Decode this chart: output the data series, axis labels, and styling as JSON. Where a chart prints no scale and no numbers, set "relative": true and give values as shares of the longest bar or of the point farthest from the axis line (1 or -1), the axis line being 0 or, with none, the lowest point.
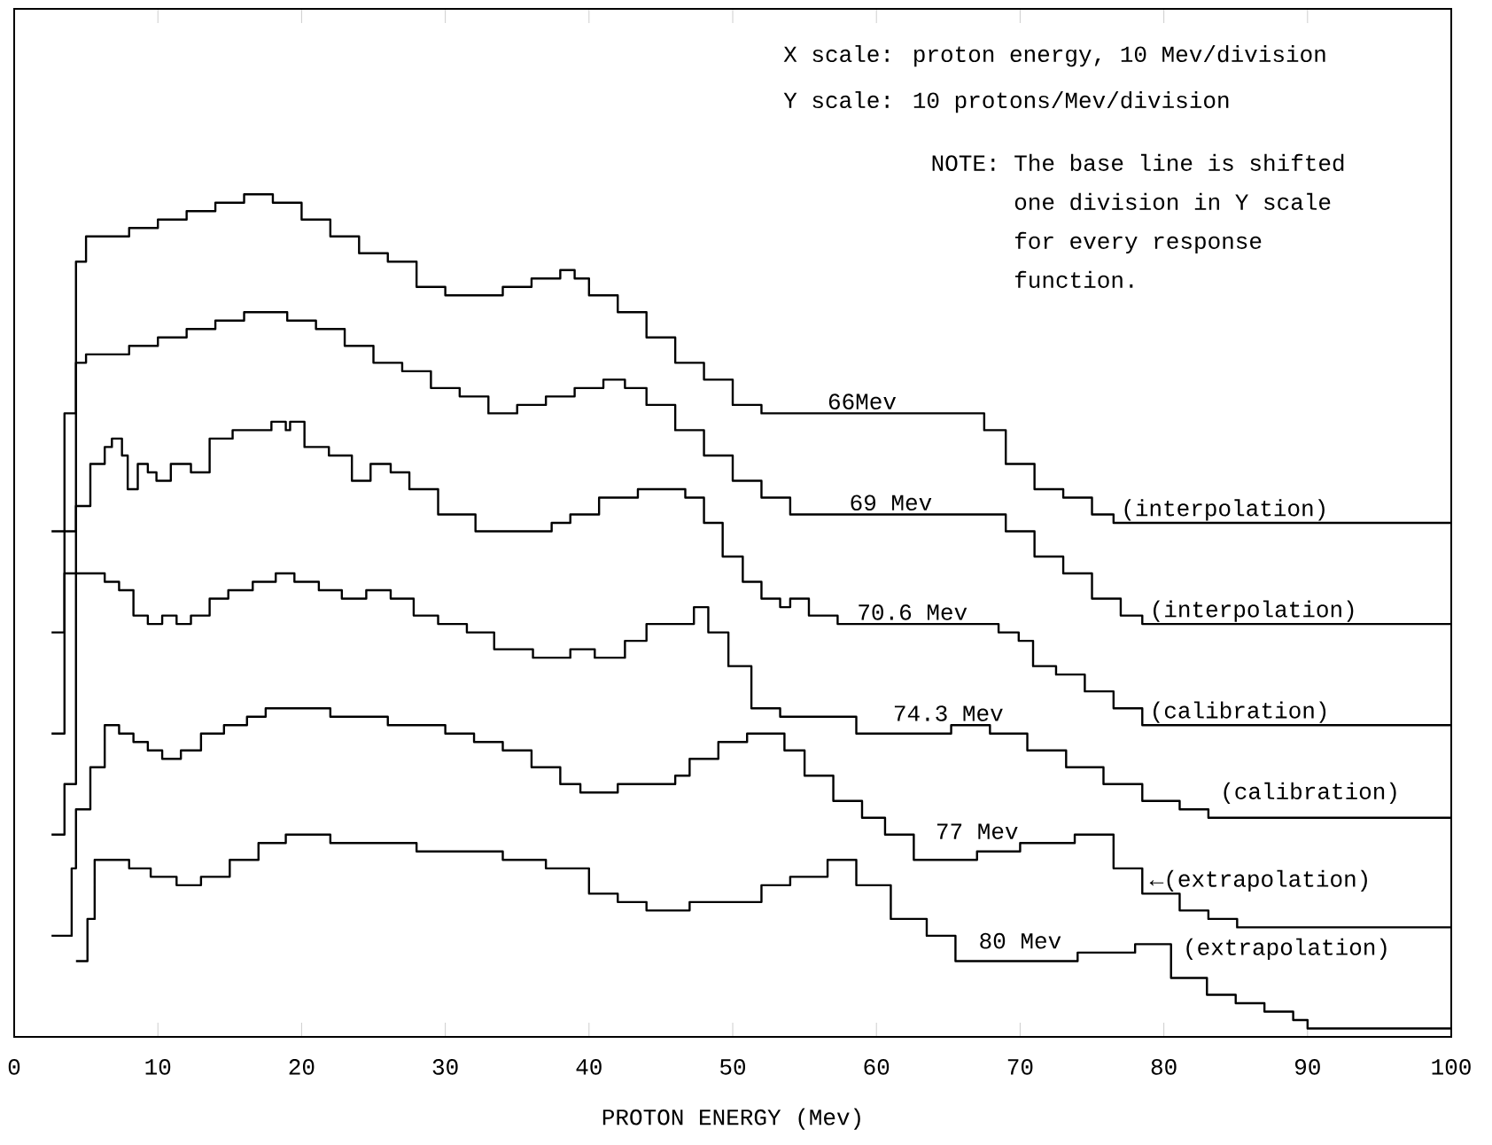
{
  "chart_data": {
    "type": "step",
    "xlabel": "PROTON ENERGY (Mev)",
    "xlim": [
      0,
      100
    ],
    "xticks": [
      0,
      10,
      20,
      30,
      40,
      50,
      60,
      70,
      80,
      90,
      100
    ],
    "relative": true,
    "grid": false,
    "legend": false,
    "annotations": [
      "X scale: proton energy, 10 Mev/division",
      "Y scale: 10 protons/Mev/division",
      "NOTE: The base line is shifted one division in Y scale for every response function.",
      {
        "text": "(interpolation)",
        "x": 76.5,
        "y": 0.61
      },
      {
        "text": "(interpolation)",
        "x": 78.5,
        "y": 0.49
      },
      {
        "text": "(calibration)",
        "x": 78.5,
        "y": 0.37
      },
      {
        "text": "(calibration)",
        "x": 83.4,
        "y": 0.274
      },
      {
        "text": "←(extrapolation)",
        "x": 78.5,
        "y": 0.17
      },
      {
        "text": "(extrapolation)",
        "x": 80.8,
        "y": 0.089
      }
    ],
    "series": [
      {
        "name": "66Mev",
        "color": "#000000",
        "x": [
          2.6,
          3.5,
          4.3,
          5,
          6,
          8,
          10,
          12,
          14,
          16,
          17,
          18,
          20,
          22,
          24,
          26,
          28,
          30,
          32,
          34,
          36,
          38,
          39,
          40,
          42,
          44,
          46,
          48,
          50,
          52,
          54,
          56,
          58,
          60,
          62,
          64,
          66,
          67.5,
          69,
          71,
          73,
          75,
          76.5,
          100
        ],
        "values": [
          0.6,
          0.74,
          0.92,
          0.95,
          0.95,
          0.96,
          0.97,
          0.98,
          0.99,
          1.0,
          1.0,
          0.99,
          0.97,
          0.95,
          0.93,
          0.92,
          0.89,
          0.88,
          0.88,
          0.89,
          0.9,
          0.91,
          0.9,
          0.88,
          0.86,
          0.83,
          0.8,
          0.78,
          0.75,
          0.74,
          0.74,
          0.74,
          0.74,
          0.74,
          0.74,
          0.74,
          0.74,
          0.72,
          0.68,
          0.65,
          0.64,
          0.62,
          0.61,
          0.61
        ]
      },
      {
        "name": "69 Mev",
        "color": "#000000",
        "x": [
          2.6,
          3.5,
          4.3,
          5,
          8,
          10,
          12,
          14,
          16,
          18,
          19,
          21,
          23,
          25,
          27,
          29,
          31,
          33,
          35,
          37,
          39,
          41,
          42.5,
          44,
          46,
          48,
          50,
          52,
          54,
          56,
          60,
          64,
          68,
          69,
          71,
          73,
          75,
          77,
          78.5,
          100
        ],
        "values": [
          0.48,
          0.6,
          0.8,
          0.81,
          0.82,
          0.83,
          0.84,
          0.85,
          0.86,
          0.86,
          0.85,
          0.84,
          0.82,
          0.8,
          0.79,
          0.77,
          0.76,
          0.74,
          0.75,
          0.76,
          0.77,
          0.78,
          0.77,
          0.75,
          0.72,
          0.69,
          0.66,
          0.64,
          0.62,
          0.62,
          0.62,
          0.62,
          0.62,
          0.6,
          0.57,
          0.55,
          0.52,
          0.5,
          0.49,
          0.49
        ]
      },
      {
        "name": "70.6 Mev",
        "color": "#000000",
        "x": [
          2.6,
          3.5,
          4.3,
          5.3,
          6.3,
          6.8,
          7.5,
          7.9,
          8.6,
          9.3,
          9.9,
          10.9,
          12.3,
          13.6,
          15.2,
          16.9,
          17.9,
          18.9,
          19.2,
          20.2,
          21.9,
          23.5,
          24.8,
          26.2,
          27.5,
          29.5,
          32.1,
          34.4,
          37.4,
          38.7,
          40.7,
          43.4,
          45.4,
          46.7,
          48,
          49.3,
          50.7,
          52,
          53.3,
          54,
          55.3,
          57.3,
          60.6,
          64.6,
          68.5,
          69.9,
          70.9,
          72.5,
          74.5,
          76.5,
          78.5,
          100
        ],
        "values": [
          0.36,
          0.55,
          0.63,
          0.68,
          0.7,
          0.71,
          0.69,
          0.65,
          0.68,
          0.67,
          0.66,
          0.68,
          0.67,
          0.71,
          0.72,
          0.72,
          0.73,
          0.72,
          0.73,
          0.7,
          0.69,
          0.66,
          0.68,
          0.67,
          0.65,
          0.62,
          0.6,
          0.6,
          0.61,
          0.62,
          0.64,
          0.65,
          0.65,
          0.64,
          0.61,
          0.57,
          0.54,
          0.52,
          0.51,
          0.52,
          0.5,
          0.49,
          0.49,
          0.49,
          0.48,
          0.47,
          0.44,
          0.43,
          0.41,
          0.39,
          0.37,
          0.37
        ]
      },
      {
        "name": "74.3 Mev",
        "color": "#000000",
        "x": [
          2.6,
          3.5,
          4.3,
          5.3,
          6.3,
          7.3,
          8.3,
          9.3,
          10.3,
          11.3,
          12.3,
          13.6,
          14.9,
          16.6,
          18.2,
          19.5,
          21.2,
          22.8,
          24.5,
          26.2,
          27.8,
          29.5,
          31.5,
          33.4,
          36.1,
          38.7,
          40.4,
          42.5,
          44,
          47.3,
          48.3,
          49.7,
          51.3,
          53.3,
          56,
          58.6,
          62.6,
          65.2,
          67.9,
          70.5,
          73.2,
          75.8,
          78.5,
          81.1,
          83.1,
          100
        ],
        "values": [
          0.24,
          0.3,
          0.55,
          0.55,
          0.54,
          0.53,
          0.5,
          0.49,
          0.5,
          0.49,
          0.5,
          0.52,
          0.53,
          0.54,
          0.55,
          0.54,
          0.53,
          0.52,
          0.53,
          0.52,
          0.5,
          0.49,
          0.48,
          0.46,
          0.45,
          0.46,
          0.45,
          0.47,
          0.49,
          0.51,
          0.48,
          0.44,
          0.39,
          0.38,
          0.38,
          0.36,
          0.36,
          0.37,
          0.36,
          0.34,
          0.32,
          0.3,
          0.28,
          0.27,
          0.26,
          0.26
        ]
      },
      {
        "name": "77 Mev",
        "color": "#000000",
        "x": [
          2.6,
          4,
          4.3,
          5.3,
          6.3,
          7.3,
          8.3,
          9.3,
          10.3,
          11.6,
          13,
          14.6,
          16.2,
          17.5,
          20,
          22,
          24,
          26,
          28,
          30,
          32,
          34,
          36,
          38,
          39.4,
          42,
          44,
          46,
          47,
          49,
          51,
          52.6,
          53.6,
          55,
          57,
          59,
          60.6,
          62.6,
          64.6,
          67,
          70,
          73.8,
          76.5,
          78.5,
          81.1,
          83.1,
          85.1,
          100
        ],
        "values": [
          0.12,
          0.2,
          0.27,
          0.32,
          0.37,
          0.36,
          0.35,
          0.34,
          0.33,
          0.34,
          0.36,
          0.37,
          0.38,
          0.39,
          0.39,
          0.38,
          0.38,
          0.37,
          0.37,
          0.36,
          0.35,
          0.34,
          0.32,
          0.3,
          0.29,
          0.3,
          0.3,
          0.31,
          0.33,
          0.35,
          0.36,
          0.36,
          0.34,
          0.31,
          0.28,
          0.26,
          0.24,
          0.21,
          0.21,
          0.22,
          0.23,
          0.24,
          0.2,
          0.17,
          0.15,
          0.14,
          0.13,
          0.13
        ]
      },
      {
        "name": "80 Mev",
        "color": "#000000",
        "x": [
          4.3,
          5.1,
          5.6,
          6.8,
          8,
          9.5,
          11.3,
          13,
          15,
          17,
          18.9,
          20,
          22,
          25,
          28,
          31,
          34,
          37,
          40,
          42,
          44,
          47,
          50,
          52,
          54,
          56.6,
          58.6,
          61,
          63.5,
          65.5,
          70,
          74,
          78,
          80.5,
          83,
          85,
          87,
          89,
          90,
          100
        ],
        "values": [
          0.09,
          0.14,
          0.21,
          0.21,
          0.2,
          0.19,
          0.18,
          0.19,
          0.21,
          0.23,
          0.24,
          0.24,
          0.23,
          0.23,
          0.22,
          0.22,
          0.21,
          0.2,
          0.17,
          0.16,
          0.15,
          0.16,
          0.16,
          0.18,
          0.19,
          0.21,
          0.18,
          0.14,
          0.12,
          0.09,
          0.09,
          0.1,
          0.11,
          0.07,
          0.05,
          0.04,
          0.03,
          0.02,
          0.01,
          0.01
        ]
      }
    ]
  }
}
